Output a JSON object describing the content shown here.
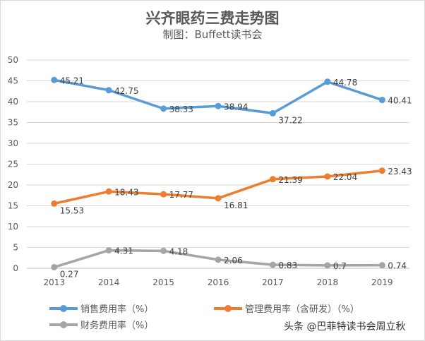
{
  "chart_data": {
    "type": "line",
    "title": "兴齐眼药三费走势图",
    "subtitle": "制图：Buffett读书会",
    "categories": [
      "2013",
      "2014",
      "2015",
      "2016",
      "2017",
      "2018",
      "2019"
    ],
    "ylim": [
      0,
      50
    ],
    "yticks": [
      "0",
      "5",
      "10",
      "15",
      "20",
      "25",
      "30",
      "35",
      "40",
      "45",
      "50"
    ],
    "grid": true,
    "legend_position": "bottom",
    "series": [
      {
        "name": "销售费用率（%）",
        "color": "#5b9bd5",
        "values": [
          45.21,
          42.75,
          38.33,
          38.94,
          37.22,
          44.78,
          40.41
        ]
      },
      {
        "name": "管理费用率（含研发）（%）",
        "color": "#ed7d31",
        "values": [
          15.53,
          18.43,
          17.77,
          16.81,
          21.39,
          22.04,
          23.43
        ]
      },
      {
        "name": "财务费用率（%）",
        "color": "#a5a5a5",
        "values": [
          0.27,
          4.31,
          4.18,
          2.06,
          0.83,
          0.7,
          0.74
        ]
      }
    ]
  },
  "watermark": "头条 @巴菲特读书会周立秋"
}
